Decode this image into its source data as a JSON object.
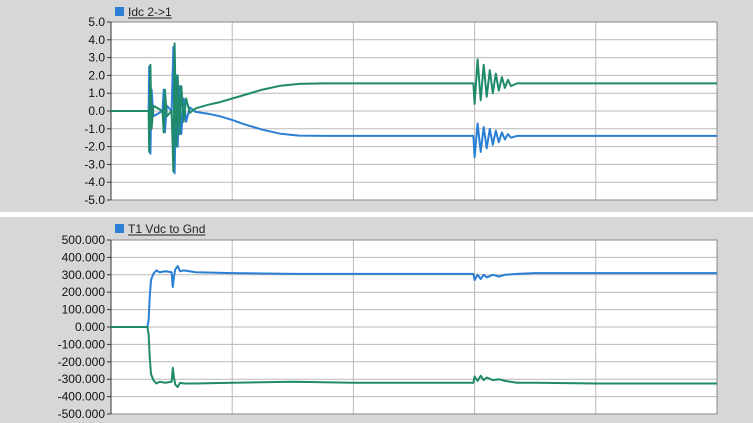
{
  "colors": {
    "panel_bg": "#d7d7d7",
    "plot_bg": "#ffffff",
    "grid": "#b9b9b9",
    "frame": "#8a8a8a",
    "series_blue": "#2a7fd4",
    "series_green": "#1f8a6a"
  },
  "chart_data": [
    {
      "type": "line",
      "legend": {
        "label": "Idc 2->1",
        "placement": "top-left"
      },
      "x_range": [
        0,
        10
      ],
      "ylim": [
        -5.0,
        5.0
      ],
      "y_ticks": [
        "5.0",
        "4.0",
        "3.0",
        "2.0",
        "1.0",
        "0.0",
        "-1.0",
        "-2.0",
        "-3.0",
        "-4.0",
        "-5.0"
      ],
      "grid": true,
      "series": [
        {
          "name": "Idc 2->1",
          "color": "#2a7fd4",
          "points": [
            [
              0,
              0
            ],
            [
              0.62,
              0
            ],
            [
              0.63,
              2.5
            ],
            [
              0.65,
              -2.4
            ],
            [
              0.67,
              1.2
            ],
            [
              0.7,
              -0.3
            ],
            [
              0.85,
              0
            ],
            [
              0.87,
              1.2
            ],
            [
              0.89,
              -1.2
            ],
            [
              0.92,
              0.3
            ],
            [
              1.0,
              0
            ],
            [
              1.03,
              3.6
            ],
            [
              1.05,
              -3.5
            ],
            [
              1.08,
              2.0
            ],
            [
              1.1,
              -2.0
            ],
            [
              1.13,
              1.4
            ],
            [
              1.16,
              -1.3
            ],
            [
              1.2,
              0.7
            ],
            [
              1.24,
              -0.6
            ],
            [
              1.3,
              0.2
            ],
            [
              1.4,
              -0.05
            ],
            [
              1.6,
              -0.15
            ],
            [
              1.8,
              -0.3
            ],
            [
              2.0,
              -0.5
            ],
            [
              2.2,
              -0.75
            ],
            [
              2.5,
              -1.05
            ],
            [
              2.8,
              -1.28
            ],
            [
              3.1,
              -1.38
            ],
            [
              3.5,
              -1.4
            ],
            [
              4.0,
              -1.4
            ],
            [
              5.0,
              -1.4
            ],
            [
              5.98,
              -1.4
            ],
            [
              6.0,
              -2.6
            ],
            [
              6.05,
              -0.7
            ],
            [
              6.1,
              -2.3
            ],
            [
              6.15,
              -0.9
            ],
            [
              6.2,
              -2.1
            ],
            [
              6.25,
              -1.0
            ],
            [
              6.3,
              -1.9
            ],
            [
              6.35,
              -1.1
            ],
            [
              6.4,
              -1.75
            ],
            [
              6.45,
              -1.2
            ],
            [
              6.5,
              -1.6
            ],
            [
              6.55,
              -1.3
            ],
            [
              6.6,
              -1.5
            ],
            [
              6.7,
              -1.4
            ],
            [
              7.0,
              -1.4
            ],
            [
              8.0,
              -1.4
            ],
            [
              9.0,
              -1.4
            ],
            [
              10.0,
              -1.4
            ]
          ]
        },
        {
          "color": "#1f8a6a",
          "points": [
            [
              0,
              0
            ],
            [
              0.62,
              0
            ],
            [
              0.63,
              -2.3
            ],
            [
              0.65,
              2.6
            ],
            [
              0.67,
              -1.0
            ],
            [
              0.7,
              0.3
            ],
            [
              0.85,
              0
            ],
            [
              0.87,
              -1.2
            ],
            [
              0.89,
              1.2
            ],
            [
              0.92,
              -0.3
            ],
            [
              1.0,
              0
            ],
            [
              1.03,
              -3.4
            ],
            [
              1.05,
              3.8
            ],
            [
              1.08,
              -2.0
            ],
            [
              1.1,
              2.0
            ],
            [
              1.13,
              -1.3
            ],
            [
              1.16,
              1.4
            ],
            [
              1.2,
              -0.6
            ],
            [
              1.24,
              0.7
            ],
            [
              1.3,
              -0.1
            ],
            [
              1.4,
              0.15
            ],
            [
              1.6,
              0.35
            ],
            [
              1.8,
              0.5
            ],
            [
              2.0,
              0.7
            ],
            [
              2.2,
              0.9
            ],
            [
              2.5,
              1.2
            ],
            [
              2.8,
              1.42
            ],
            [
              3.1,
              1.52
            ],
            [
              3.5,
              1.55
            ],
            [
              4.0,
              1.55
            ],
            [
              5.0,
              1.55
            ],
            [
              5.98,
              1.55
            ],
            [
              6.0,
              0.4
            ],
            [
              6.05,
              2.9
            ],
            [
              6.1,
              0.6
            ],
            [
              6.15,
              2.6
            ],
            [
              6.2,
              0.8
            ],
            [
              6.25,
              2.3
            ],
            [
              6.3,
              1.0
            ],
            [
              6.35,
              2.1
            ],
            [
              6.4,
              1.15
            ],
            [
              6.45,
              1.9
            ],
            [
              6.5,
              1.3
            ],
            [
              6.55,
              1.75
            ],
            [
              6.6,
              1.4
            ],
            [
              6.7,
              1.55
            ],
            [
              7.0,
              1.55
            ],
            [
              8.0,
              1.55
            ],
            [
              9.0,
              1.55
            ],
            [
              10.0,
              1.55
            ]
          ]
        }
      ]
    },
    {
      "type": "line",
      "legend": {
        "label": "T1 Vdc to Gnd",
        "placement": "top-left"
      },
      "x_range": [
        0,
        10
      ],
      "ylim": [
        -500.0,
        500.0
      ],
      "y_ticks": [
        "500.000",
        "400.000",
        "300.000",
        "200.000",
        "100.000",
        "0.000",
        "-100.000",
        "-200.000",
        "-300.000",
        "-400.000",
        "-500.000"
      ],
      "grid": true,
      "series": [
        {
          "name": "T1 Vdc to Gnd",
          "color": "#2a7fd4",
          "points": [
            [
              0,
              0
            ],
            [
              0.6,
              0
            ],
            [
              0.62,
              40
            ],
            [
              0.64,
              180
            ],
            [
              0.66,
              270
            ],
            [
              0.7,
              305
            ],
            [
              0.75,
              325
            ],
            [
              0.8,
              315
            ],
            [
              0.9,
              320
            ],
            [
              1.0,
              315
            ],
            [
              1.02,
              230
            ],
            [
              1.04,
              290
            ],
            [
              1.06,
              330
            ],
            [
              1.1,
              350
            ],
            [
              1.14,
              320
            ],
            [
              1.2,
              325
            ],
            [
              1.4,
              315
            ],
            [
              2.0,
              310
            ],
            [
              3.0,
              305
            ],
            [
              4.0,
              305
            ],
            [
              5.0,
              305
            ],
            [
              5.98,
              305
            ],
            [
              6.0,
              270
            ],
            [
              6.05,
              300
            ],
            [
              6.1,
              275
            ],
            [
              6.15,
              300
            ],
            [
              6.2,
              285
            ],
            [
              6.3,
              300
            ],
            [
              6.4,
              290
            ],
            [
              6.5,
              300
            ],
            [
              6.7,
              305
            ],
            [
              7.0,
              310
            ],
            [
              8.0,
              310
            ],
            [
              9.0,
              310
            ],
            [
              10.0,
              310
            ]
          ]
        },
        {
          "color": "#1f8a6a",
          "points": [
            [
              0,
              0
            ],
            [
              0.6,
              0
            ],
            [
              0.62,
              -40
            ],
            [
              0.64,
              -180
            ],
            [
              0.66,
              -270
            ],
            [
              0.7,
              -305
            ],
            [
              0.75,
              -325
            ],
            [
              0.8,
              -315
            ],
            [
              0.9,
              -320
            ],
            [
              1.0,
              -315
            ],
            [
              1.02,
              -235
            ],
            [
              1.04,
              -290
            ],
            [
              1.06,
              -330
            ],
            [
              1.1,
              -345
            ],
            [
              1.14,
              -320
            ],
            [
              1.2,
              -325
            ],
            [
              1.4,
              -325
            ],
            [
              2.0,
              -320
            ],
            [
              3.0,
              -315
            ],
            [
              4.0,
              -320
            ],
            [
              5.0,
              -320
            ],
            [
              5.98,
              -320
            ],
            [
              6.0,
              -285
            ],
            [
              6.05,
              -310
            ],
            [
              6.1,
              -280
            ],
            [
              6.15,
              -305
            ],
            [
              6.2,
              -290
            ],
            [
              6.3,
              -305
            ],
            [
              6.4,
              -300
            ],
            [
              6.5,
              -310
            ],
            [
              6.7,
              -320
            ],
            [
              7.0,
              -320
            ],
            [
              8.0,
              -325
            ],
            [
              9.0,
              -325
            ],
            [
              10.0,
              -325
            ]
          ]
        }
      ]
    }
  ]
}
